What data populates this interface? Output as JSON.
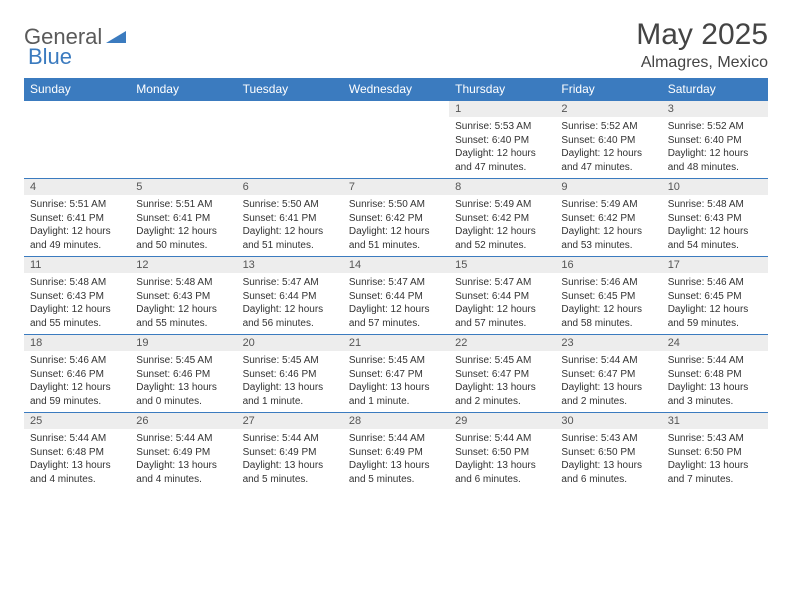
{
  "logo": {
    "general": "General",
    "blue": "Blue"
  },
  "title": "May 2025",
  "location": "Almagres, Mexico",
  "colors": {
    "header_bg": "#3b7bbf",
    "header_text": "#ffffff",
    "daynum_bg": "#ededed",
    "body_bg": "#ffffff",
    "text": "#333333",
    "logo_blue": "#3b7bbf",
    "logo_gray": "#5a5a5a"
  },
  "day_headers": [
    "Sunday",
    "Monday",
    "Tuesday",
    "Wednesday",
    "Thursday",
    "Friday",
    "Saturday"
  ],
  "weeks": [
    [
      {
        "n": "",
        "sr": "",
        "ss": "",
        "dl": ""
      },
      {
        "n": "",
        "sr": "",
        "ss": "",
        "dl": ""
      },
      {
        "n": "",
        "sr": "",
        "ss": "",
        "dl": ""
      },
      {
        "n": "",
        "sr": "",
        "ss": "",
        "dl": ""
      },
      {
        "n": "1",
        "sr": "Sunrise: 5:53 AM",
        "ss": "Sunset: 6:40 PM",
        "dl": "Daylight: 12 hours and 47 minutes."
      },
      {
        "n": "2",
        "sr": "Sunrise: 5:52 AM",
        "ss": "Sunset: 6:40 PM",
        "dl": "Daylight: 12 hours and 47 minutes."
      },
      {
        "n": "3",
        "sr": "Sunrise: 5:52 AM",
        "ss": "Sunset: 6:40 PM",
        "dl": "Daylight: 12 hours and 48 minutes."
      }
    ],
    [
      {
        "n": "4",
        "sr": "Sunrise: 5:51 AM",
        "ss": "Sunset: 6:41 PM",
        "dl": "Daylight: 12 hours and 49 minutes."
      },
      {
        "n": "5",
        "sr": "Sunrise: 5:51 AM",
        "ss": "Sunset: 6:41 PM",
        "dl": "Daylight: 12 hours and 50 minutes."
      },
      {
        "n": "6",
        "sr": "Sunrise: 5:50 AM",
        "ss": "Sunset: 6:41 PM",
        "dl": "Daylight: 12 hours and 51 minutes."
      },
      {
        "n": "7",
        "sr": "Sunrise: 5:50 AM",
        "ss": "Sunset: 6:42 PM",
        "dl": "Daylight: 12 hours and 51 minutes."
      },
      {
        "n": "8",
        "sr": "Sunrise: 5:49 AM",
        "ss": "Sunset: 6:42 PM",
        "dl": "Daylight: 12 hours and 52 minutes."
      },
      {
        "n": "9",
        "sr": "Sunrise: 5:49 AM",
        "ss": "Sunset: 6:42 PM",
        "dl": "Daylight: 12 hours and 53 minutes."
      },
      {
        "n": "10",
        "sr": "Sunrise: 5:48 AM",
        "ss": "Sunset: 6:43 PM",
        "dl": "Daylight: 12 hours and 54 minutes."
      }
    ],
    [
      {
        "n": "11",
        "sr": "Sunrise: 5:48 AM",
        "ss": "Sunset: 6:43 PM",
        "dl": "Daylight: 12 hours and 55 minutes."
      },
      {
        "n": "12",
        "sr": "Sunrise: 5:48 AM",
        "ss": "Sunset: 6:43 PM",
        "dl": "Daylight: 12 hours and 55 minutes."
      },
      {
        "n": "13",
        "sr": "Sunrise: 5:47 AM",
        "ss": "Sunset: 6:44 PM",
        "dl": "Daylight: 12 hours and 56 minutes."
      },
      {
        "n": "14",
        "sr": "Sunrise: 5:47 AM",
        "ss": "Sunset: 6:44 PM",
        "dl": "Daylight: 12 hours and 57 minutes."
      },
      {
        "n": "15",
        "sr": "Sunrise: 5:47 AM",
        "ss": "Sunset: 6:44 PM",
        "dl": "Daylight: 12 hours and 57 minutes."
      },
      {
        "n": "16",
        "sr": "Sunrise: 5:46 AM",
        "ss": "Sunset: 6:45 PM",
        "dl": "Daylight: 12 hours and 58 minutes."
      },
      {
        "n": "17",
        "sr": "Sunrise: 5:46 AM",
        "ss": "Sunset: 6:45 PM",
        "dl": "Daylight: 12 hours and 59 minutes."
      }
    ],
    [
      {
        "n": "18",
        "sr": "Sunrise: 5:46 AM",
        "ss": "Sunset: 6:46 PM",
        "dl": "Daylight: 12 hours and 59 minutes."
      },
      {
        "n": "19",
        "sr": "Sunrise: 5:45 AM",
        "ss": "Sunset: 6:46 PM",
        "dl": "Daylight: 13 hours and 0 minutes."
      },
      {
        "n": "20",
        "sr": "Sunrise: 5:45 AM",
        "ss": "Sunset: 6:46 PM",
        "dl": "Daylight: 13 hours and 1 minute."
      },
      {
        "n": "21",
        "sr": "Sunrise: 5:45 AM",
        "ss": "Sunset: 6:47 PM",
        "dl": "Daylight: 13 hours and 1 minute."
      },
      {
        "n": "22",
        "sr": "Sunrise: 5:45 AM",
        "ss": "Sunset: 6:47 PM",
        "dl": "Daylight: 13 hours and 2 minutes."
      },
      {
        "n": "23",
        "sr": "Sunrise: 5:44 AM",
        "ss": "Sunset: 6:47 PM",
        "dl": "Daylight: 13 hours and 2 minutes."
      },
      {
        "n": "24",
        "sr": "Sunrise: 5:44 AM",
        "ss": "Sunset: 6:48 PM",
        "dl": "Daylight: 13 hours and 3 minutes."
      }
    ],
    [
      {
        "n": "25",
        "sr": "Sunrise: 5:44 AM",
        "ss": "Sunset: 6:48 PM",
        "dl": "Daylight: 13 hours and 4 minutes."
      },
      {
        "n": "26",
        "sr": "Sunrise: 5:44 AM",
        "ss": "Sunset: 6:49 PM",
        "dl": "Daylight: 13 hours and 4 minutes."
      },
      {
        "n": "27",
        "sr": "Sunrise: 5:44 AM",
        "ss": "Sunset: 6:49 PM",
        "dl": "Daylight: 13 hours and 5 minutes."
      },
      {
        "n": "28",
        "sr": "Sunrise: 5:44 AM",
        "ss": "Sunset: 6:49 PM",
        "dl": "Daylight: 13 hours and 5 minutes."
      },
      {
        "n": "29",
        "sr": "Sunrise: 5:44 AM",
        "ss": "Sunset: 6:50 PM",
        "dl": "Daylight: 13 hours and 6 minutes."
      },
      {
        "n": "30",
        "sr": "Sunrise: 5:43 AM",
        "ss": "Sunset: 6:50 PM",
        "dl": "Daylight: 13 hours and 6 minutes."
      },
      {
        "n": "31",
        "sr": "Sunrise: 5:43 AM",
        "ss": "Sunset: 6:50 PM",
        "dl": "Daylight: 13 hours and 7 minutes."
      }
    ]
  ]
}
